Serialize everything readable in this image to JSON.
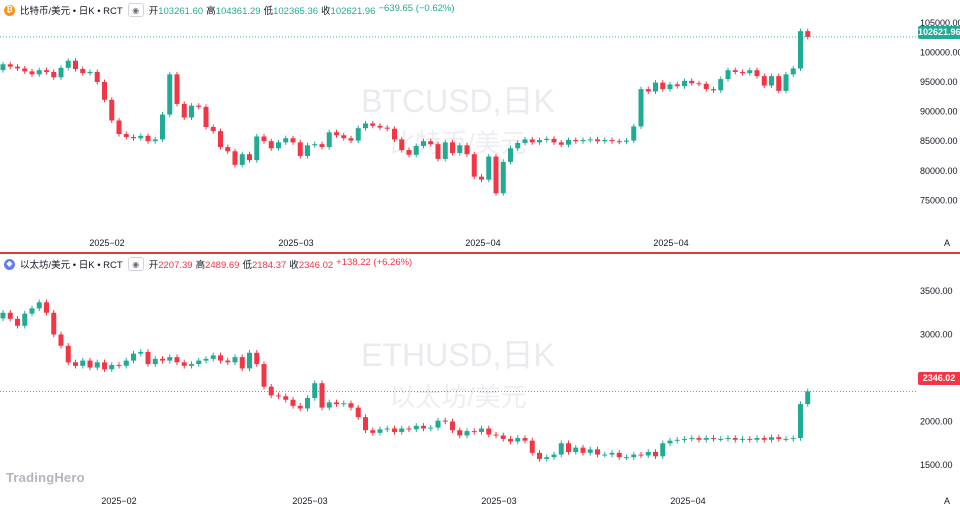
{
  "brand": "TradingHero",
  "colors": {
    "up": "#22ab94",
    "down": "#f23645",
    "btc": "#f7931a",
    "eth": "#627eea"
  },
  "btc": {
    "icon": "bitcoin-icon",
    "title": "比特币/美元 • 日K • RCT",
    "open_label": "开",
    "open": "103261.60",
    "high_label": "高",
    "high": "104361.29",
    "low_label": "低",
    "low": "102365.36",
    "close_label": "收",
    "close": "102621.96",
    "change": "−639.65 (−0.62%)",
    "watermark": "BTCUSD,日K",
    "watermark_sub": "比特币/美元",
    "last_price_tag": "102621.96",
    "auto_label": "A"
  },
  "eth": {
    "icon": "ethereum-icon",
    "title": "以太坊/美元 • 日K • RCT",
    "open_label": "开",
    "open": "2207.39",
    "high_label": "高",
    "high": "2489.69",
    "low_label": "低",
    "low": "2184.37",
    "close_label": "收",
    "close": "2346.02",
    "change": "+138.22 (+6.26%)",
    "watermark": "ETHUSD,日K",
    "watermark_sub": "以太坊/美元",
    "last_price_tag": "2346.02",
    "auto_label": "A"
  },
  "chart_data": [
    {
      "type": "candlestick",
      "title": "比特币/美元 • 日K • RCT",
      "ylim": [
        71000,
        106500
      ],
      "yticks": [
        "75000.00",
        "80000.00",
        "85000.00",
        "90000.00",
        "95000.00",
        "100000.00",
        "105000.00"
      ],
      "xticks": [
        "2025−02",
        "2025−03",
        "2025−04",
        "2025−04"
      ],
      "last_price": 102621.96,
      "closes": [
        98000,
        97600,
        97300,
        96800,
        96300,
        97000,
        96700,
        95800,
        97400,
        98600,
        97200,
        96500,
        96700,
        95000,
        92000,
        88500,
        86200,
        85700,
        85500,
        85900,
        85000,
        85300,
        89500,
        96300,
        91300,
        89000,
        91000,
        90800,
        87400,
        86700,
        84000,
        83300,
        81000,
        82800,
        81800,
        85800,
        85000,
        83800,
        84800,
        85500,
        84800,
        82500,
        84300,
        84500,
        84000,
        86500,
        86000,
        85500,
        85100,
        87200,
        88000,
        87600,
        87300,
        87100,
        85300,
        83500,
        82700,
        84200,
        85000,
        84500,
        82000,
        84800,
        83000,
        84300,
        82800,
        79000,
        78500,
        82400,
        76200,
        81500,
        83800,
        84700,
        85300,
        84800,
        85200,
        85400,
        84800,
        84400,
        85200,
        85000,
        85200,
        85300,
        85000,
        85200,
        85000,
        84900,
        85100,
        87500,
        93800,
        93400,
        94900,
        93800,
        94600,
        94300,
        95200,
        94800,
        94700,
        93800,
        93600,
        95500,
        97000,
        96700,
        96500,
        97000,
        96000,
        94400,
        96000,
        93500,
        96300,
        97300,
        103600,
        102622
      ]
    },
    {
      "type": "candlestick",
      "title": "以太坊/美元 • 日K • RCT",
      "ylim": [
        1190,
        3810
      ],
      "yticks": [
        "1500.00",
        "2000.00",
        "2500.00",
        "3000.00",
        "3500.00"
      ],
      "xticks": [
        "2025−02",
        "2025−03",
        "2025−03",
        "2025−04"
      ],
      "last_price": 2346.02,
      "closes": [
        3250,
        3180,
        3100,
        3240,
        3300,
        3370,
        3250,
        3000,
        2870,
        2680,
        2640,
        2700,
        2620,
        2680,
        2600,
        2650,
        2640,
        2700,
        2780,
        2800,
        2660,
        2720,
        2700,
        2740,
        2680,
        2640,
        2660,
        2700,
        2720,
        2760,
        2700,
        2680,
        2740,
        2610,
        2790,
        2660,
        2400,
        2300,
        2290,
        2250,
        2180,
        2150,
        2270,
        2440,
        2160,
        2220,
        2200,
        2210,
        2160,
        2050,
        1900,
        1870,
        1910,
        1920,
        1880,
        1920,
        1910,
        1950,
        1920,
        1930,
        2010,
        2000,
        1900,
        1840,
        1890,
        1880,
        1920,
        1850,
        1840,
        1800,
        1770,
        1810,
        1780,
        1640,
        1570,
        1590,
        1620,
        1750,
        1650,
        1700,
        1640,
        1680,
        1620,
        1620,
        1640,
        1590,
        1590,
        1620,
        1610,
        1650,
        1600,
        1750,
        1780,
        1790,
        1800,
        1810,
        1790,
        1810,
        1800,
        1800,
        1810,
        1790,
        1800,
        1790,
        1810,
        1790,
        1820,
        1800,
        1800,
        1810,
        2200,
        2346
      ]
    }
  ]
}
